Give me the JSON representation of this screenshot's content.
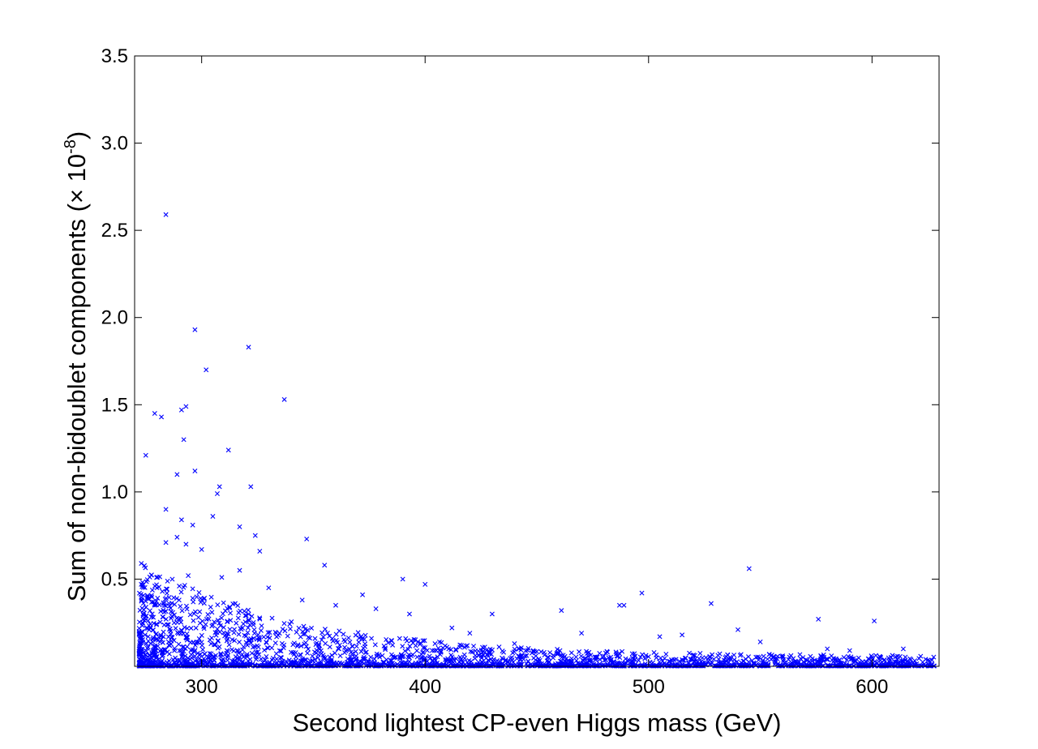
{
  "chart_data": {
    "type": "scatter",
    "xlabel": "Second lightest CP-even Higgs mass (GeV)",
    "ylabel_main": "Sum of non-bidoublet components (",
    "ylabel_times": "×",
    "ylabel_base": " 10",
    "ylabel_exp": "-8",
    "ylabel_close": ")",
    "xlim": [
      270,
      630
    ],
    "ylim": [
      0,
      3.5
    ],
    "xticks": [
      300,
      400,
      500,
      600
    ],
    "xtick_labels": [
      "300",
      "400",
      "500",
      "600"
    ],
    "yticks": [
      0.5,
      1.0,
      1.5,
      2.0,
      2.5,
      3.0,
      3.5
    ],
    "ytick_labels": [
      "0.5",
      "1.0",
      "1.5",
      "2.0",
      "2.5",
      "3.0",
      "3.5"
    ],
    "marker": "x",
    "color": "#0000ff",
    "grid": false,
    "series": [
      {
        "points": [
          [
            284,
            2.59
          ],
          [
            297,
            1.93
          ],
          [
            321,
            1.83
          ],
          [
            302,
            1.7
          ],
          [
            337,
            1.53
          ],
          [
            293,
            1.49
          ],
          [
            291,
            1.47
          ],
          [
            279,
            1.45
          ],
          [
            282,
            1.43
          ],
          [
            292,
            1.3
          ],
          [
            312,
            1.24
          ],
          [
            275,
            1.21
          ],
          [
            297,
            1.12
          ],
          [
            289,
            1.1
          ],
          [
            308,
            1.03
          ],
          [
            322,
            1.03
          ],
          [
            307,
            0.99
          ],
          [
            284,
            0.9
          ],
          [
            291,
            0.84
          ],
          [
            305,
            0.86
          ],
          [
            296,
            0.81
          ],
          [
            317,
            0.8
          ],
          [
            324,
            0.75
          ],
          [
            289,
            0.74
          ],
          [
            347,
            0.73
          ],
          [
            284,
            0.71
          ],
          [
            293,
            0.7
          ],
          [
            300,
            0.67
          ],
          [
            326,
            0.66
          ],
          [
            273,
            0.59
          ],
          [
            355,
            0.58
          ],
          [
            545,
            0.56
          ],
          [
            317,
            0.55
          ],
          [
            294,
            0.52
          ],
          [
            309,
            0.51
          ],
          [
            390,
            0.5
          ],
          [
            400,
            0.47
          ],
          [
            497,
            0.42
          ],
          [
            372,
            0.41
          ],
          [
            330,
            0.45
          ],
          [
            290,
            0.46
          ],
          [
            280,
            0.45
          ],
          [
            528,
            0.36
          ],
          [
            487,
            0.35
          ],
          [
            489,
            0.35
          ],
          [
            461,
            0.32
          ],
          [
            430,
            0.3
          ],
          [
            576,
            0.27
          ],
          [
            601,
            0.26
          ],
          [
            540,
            0.21
          ],
          [
            279,
            0.35
          ],
          [
            315,
            0.36
          ],
          [
            345,
            0.38
          ],
          [
            360,
            0.35
          ],
          [
            378,
            0.33
          ],
          [
            393,
            0.3
          ],
          [
            412,
            0.22
          ],
          [
            505,
            0.17
          ],
          [
            515,
            0.18
          ],
          [
            470,
            0.19
          ],
          [
            580,
            0.1
          ],
          [
            614,
            0.1
          ],
          [
            590,
            0.09
          ],
          [
            600,
            0.05
          ],
          [
            624,
            0.04
          ],
          [
            560,
            0.06
          ],
          [
            550,
            0.14
          ],
          [
            440,
            0.13
          ],
          [
            445,
            0.09
          ],
          [
            420,
            0.19
          ]
        ]
      }
    ]
  }
}
